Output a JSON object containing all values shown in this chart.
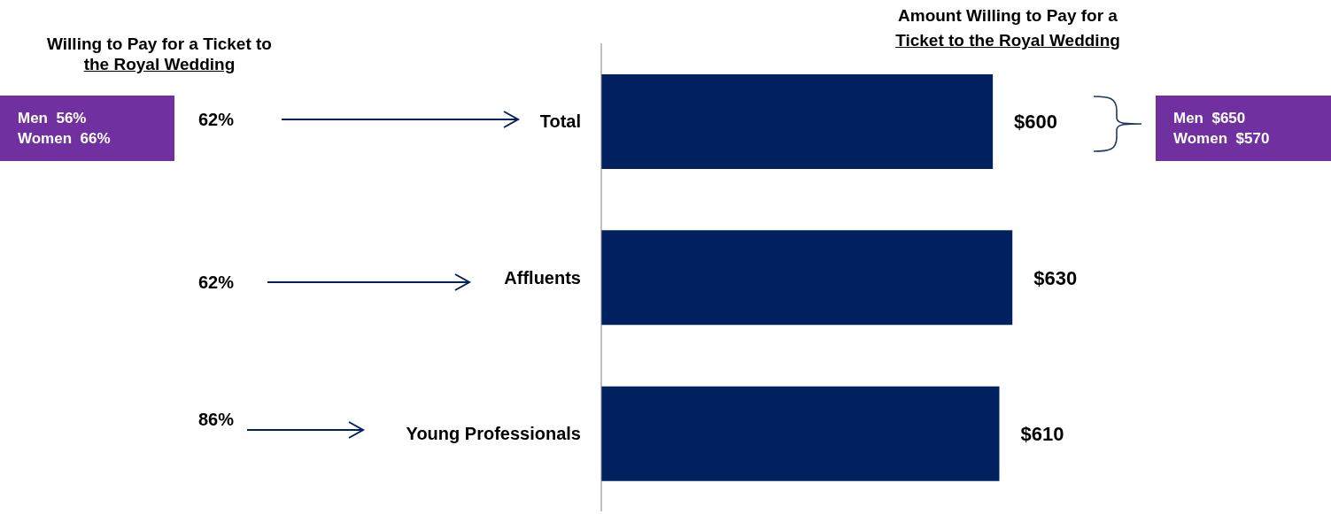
{
  "chart_data": {
    "type": "bar",
    "orientation": "horizontal",
    "title": "Amount Willing to Pay for a\nTicket to the Royal Wedding",
    "categories": [
      "Total",
      "Affluents",
      "Young Professionals"
    ],
    "values": [
      600,
      630,
      610
    ],
    "value_labels": [
      "$600",
      "$630",
      "$610"
    ],
    "color": "#002060",
    "annotations": [
      "Willing to Pay for a Ticket to\nthe Royal Wedding",
      "Men  56%\nWomen  66%",
      "Men  $650\nWomen  $570",
      "62%",
      "62%",
      "86%"
    ]
  }
}
